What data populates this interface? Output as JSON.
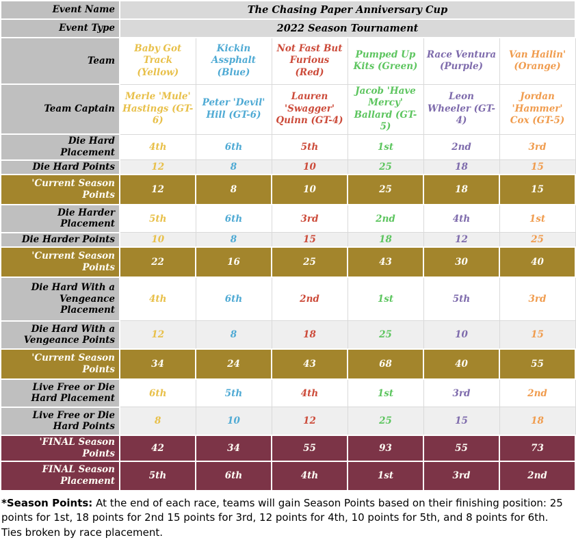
{
  "meta": {
    "event_name_label": "Event Name",
    "event_name": "The Chasing Paper Anniversary Cup",
    "event_type_label": "Event Type",
    "event_type": "2022 Season Tournament"
  },
  "header": {
    "team_label": "Team",
    "captain_label": "Team Captain"
  },
  "columns": [
    {
      "team": "Baby Got Track (Yellow)",
      "captain": "Merle 'Mule' Hastings (GT-6)",
      "color": "#E8C04A"
    },
    {
      "team": "Kickin Assphalt (Blue)",
      "captain": "Peter 'Devil' Hill (GT-6)",
      "color": "#4FAAD4"
    },
    {
      "team": "Not Fast But Furious (Red)",
      "captain": "Lauren 'Swagger' Quinn (GT-4)",
      "color": "#CC4B3A"
    },
    {
      "team": "Pumped Up Kits (Green)",
      "captain": "Jacob 'Have Mercy' Ballard (GT-5)",
      "color": "#5DC55F"
    },
    {
      "team": "Race Ventura (Purple)",
      "captain": "Leon Wheeler (GT-4)",
      "color": "#7E6BAC"
    },
    {
      "team": "Van Hailin' (Orange)",
      "captain": "Jordan 'Hammer' Cox (GT-5)",
      "color": "#F09C4E"
    }
  ],
  "rows": [
    {
      "label": "Die Hard Placement",
      "style": "white",
      "values": [
        "4th",
        "6th",
        "5th",
        "1st",
        "2nd",
        "3rd"
      ]
    },
    {
      "label": "Die Hard Points",
      "style": "alt",
      "values": [
        "12",
        "8",
        "10",
        "25",
        "18",
        "15"
      ]
    },
    {
      "label": "'Current Season Points",
      "style": "gold",
      "values": [
        "12",
        "8",
        "10",
        "25",
        "18",
        "15"
      ]
    },
    {
      "label": "Die Harder Placement",
      "style": "white",
      "values": [
        "5th",
        "6th",
        "3rd",
        "2nd",
        "4th",
        "1st"
      ]
    },
    {
      "label": "Die Harder Points",
      "style": "alt",
      "values": [
        "10",
        "8",
        "15",
        "18",
        "12",
        "25"
      ]
    },
    {
      "label": "'Current Season Points",
      "style": "gold",
      "values": [
        "22",
        "16",
        "25",
        "43",
        "30",
        "40"
      ]
    },
    {
      "label": "Die Hard With a Vengeance Placement",
      "style": "white",
      "values": [
        "4th",
        "6th",
        "2nd",
        "1st",
        "5th",
        "3rd"
      ]
    },
    {
      "label": "Die Hard With a Vengeance Points",
      "style": "alt",
      "values": [
        "12",
        "8",
        "18",
        "25",
        "10",
        "15"
      ]
    },
    {
      "label": "'Current Season Points",
      "style": "gold",
      "values": [
        "34",
        "24",
        "43",
        "68",
        "40",
        "55"
      ]
    },
    {
      "label": "Live Free or Die Hard Placement",
      "style": "white",
      "values": [
        "6th",
        "5th",
        "4th",
        "1st",
        "3rd",
        "2nd"
      ]
    },
    {
      "label": "Live Free or Die Hard Points",
      "style": "alt",
      "values": [
        "8",
        "10",
        "12",
        "25",
        "15",
        "18"
      ]
    },
    {
      "label": "'FINAL Season Points",
      "style": "maroon",
      "values": [
        "42",
        "34",
        "55",
        "93",
        "55",
        "73"
      ]
    },
    {
      "label": "FINAL Season Placement",
      "style": "maroon",
      "values": [
        "5th",
        "6th",
        "4th",
        "1st",
        "3rd",
        "2nd"
      ]
    }
  ],
  "footer": {
    "bold_label": "*Season Points:",
    "text": " At the end of each race, teams will gain Season Points based on their finishing position: 25 points for 1st, 18 points for 2nd 15 points for 3rd, 12 points for 4th, 10 points for 5th, and 8 points for 6th. Ties broken by race placement."
  },
  "colors": {
    "label_bg": "#BFBFBF",
    "meta_bg": "#D9D9D9",
    "alt_row_bg": "#EFEFEF",
    "gold_row_bg": "#A3852C",
    "maroon_row_bg": "#7C3447",
    "white_text": "#FFFDF5"
  }
}
